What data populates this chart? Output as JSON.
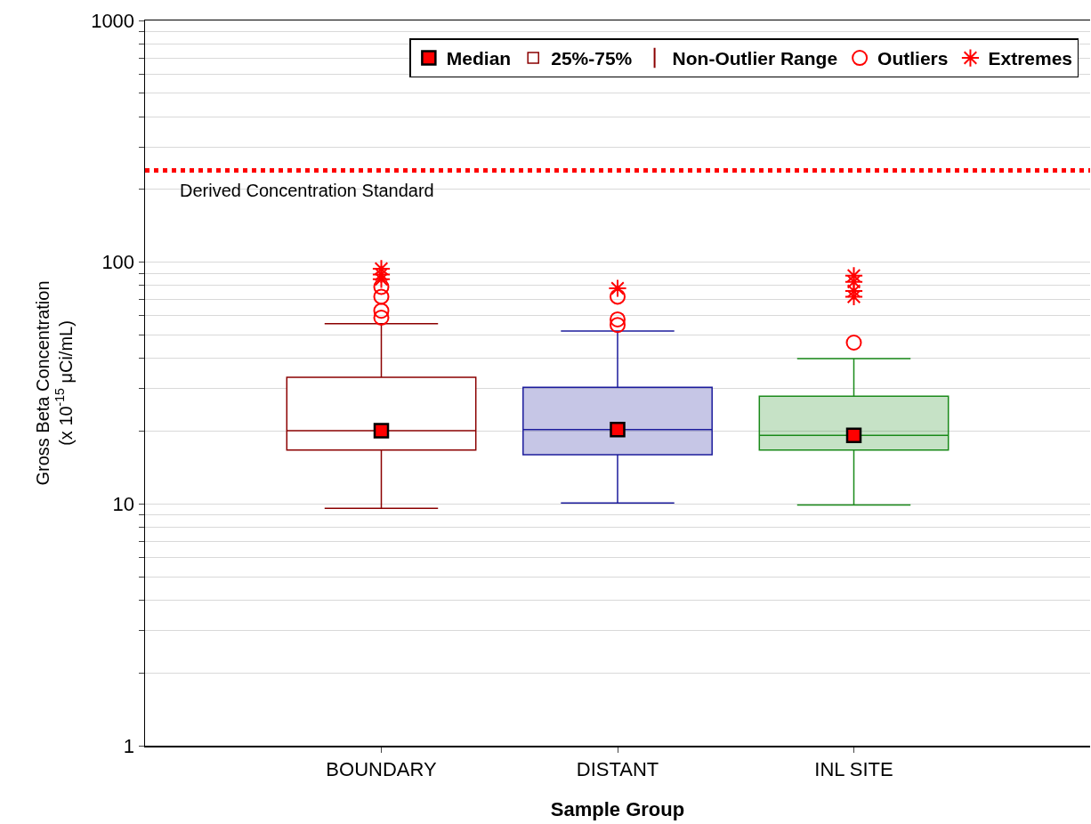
{
  "chart_data": {
    "type": "box",
    "xlabel": "Sample Group",
    "ylabel": "Gross Beta Concentration\n(x 10$^{-15}$ μCi/mL)",
    "categories": [
      "BOUNDARY",
      "DISTANT",
      "INL SITE"
    ],
    "series": [
      {
        "type": "scatter",
        "name": "Median",
        "marker": "square",
        "color": "#ff0000",
        "x": [
          "BOUNDARY",
          "DISTANT",
          "INL SITE"
        ],
        "values": [
          20.1,
          20.3,
          19.2
        ]
      },
      {
        "type": "box",
        "name": "25%-75%",
        "colors": [
          "#8b0000",
          "#1c1c9c",
          "#1a8a1a"
        ],
        "boxes": [
          {
            "low": 9.6,
            "q1": 16.7,
            "median": 20.1,
            "q3": 33.4,
            "high": 55.7
          },
          {
            "low": 10.1,
            "q1": 16.0,
            "median": 20.3,
            "q3": 30.4,
            "high": 51.9
          },
          {
            "low": 9.9,
            "q1": 16.7,
            "median": 19.2,
            "q3": 27.9,
            "high": 39.9
          }
        ]
      },
      {
        "type": "scatter",
        "name": "Outliers",
        "marker": "circle",
        "color": "#ff0000",
        "x": [
          "BOUNDARY",
          "BOUNDARY",
          "BOUNDARY",
          "BOUNDARY",
          "DISTANT",
          "DISTANT",
          "DISTANT",
          "INL SITE"
        ],
        "values": [
          59,
          63,
          72,
          79,
          55,
          58,
          72,
          46.5
        ]
      },
      {
        "type": "scatter",
        "name": "Extremes",
        "marker": "cross",
        "color": "#ff0000",
        "x": [
          "BOUNDARY",
          "BOUNDARY",
          "BOUNDARY",
          "DISTANT",
          "INL SITE",
          "INL SITE",
          "INL SITE",
          "INL SITE"
        ],
        "values": [
          85,
          89,
          94,
          78,
          72,
          76,
          83,
          88
        ]
      }
    ],
    "annotations": [
      "Non-Outlier Range"
    ],
    "ref_lines": [
      {
        "axis": "y",
        "value": 240,
        "label": "Derived Concentration Standard",
        "color": "#ff0000",
        "line_style": "dotted"
      }
    ],
    "log": "y",
    "ylim": [
      1,
      1000
    ],
    "yticks": [
      1,
      {
        "value": 2,
        "label": null
      },
      {
        "value": 3,
        "label": null
      },
      {
        "value": 4,
        "label": null
      },
      {
        "value": 5,
        "label": null
      },
      {
        "value": 6,
        "label": null
      },
      {
        "value": 7,
        "label": null
      },
      {
        "value": 8,
        "label": null
      },
      {
        "value": 9,
        "label": null
      },
      10,
      {
        "value": 20,
        "label": null
      },
      {
        "value": 30,
        "label": null
      },
      {
        "value": 40,
        "label": null
      },
      {
        "value": 50,
        "label": null
      },
      {
        "value": 60,
        "label": null
      },
      {
        "value": 70,
        "label": null
      },
      {
        "value": 80,
        "label": null
      },
      {
        "value": 90,
        "label": null
      },
      100,
      {
        "value": 200,
        "label": null
      },
      {
        "value": 300,
        "label": null
      },
      {
        "value": 400,
        "label": null
      },
      {
        "value": 500,
        "label": null
      },
      {
        "value": 600,
        "label": null
      },
      {
        "value": 700,
        "label": null
      },
      {
        "value": 800,
        "label": null
      },
      {
        "value": 900,
        "label": null
      },
      1000
    ],
    "grid": "y",
    "legend": "top"
  }
}
